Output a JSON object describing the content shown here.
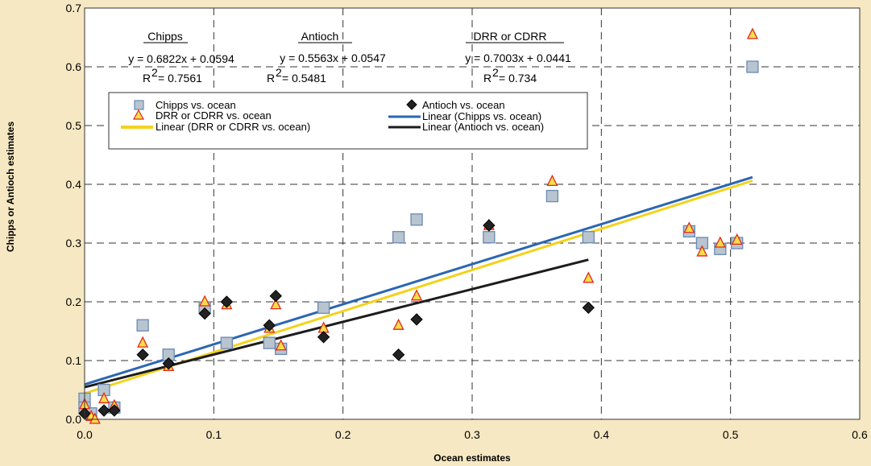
{
  "chart_data": {
    "type": "scatter",
    "xlabel": "Ocean estimates",
    "ylabel": "Chipps or Antioch estimates",
    "xlim": [
      0.0,
      0.6
    ],
    "ylim": [
      0.0,
      0.7
    ],
    "x_ticks": [
      "0.0",
      "0.1",
      "0.2",
      "0.3",
      "0.4",
      "0.5",
      "0.6"
    ],
    "y_ticks": [
      "0.0",
      "0.1",
      "0.2",
      "0.3",
      "0.4",
      "0.5",
      "0.6",
      "0.7"
    ],
    "grid": "dashed",
    "background_color": "#f6e8c2",
    "series": [
      {
        "name": "Chipps vs. ocean",
        "marker": "square",
        "color": "#b8c4cf",
        "stroke": "#6a8ab4",
        "points": [
          [
            0.0,
            0.035
          ],
          [
            0.0,
            0.02
          ],
          [
            0.005,
            0.01
          ],
          [
            0.015,
            0.05
          ],
          [
            0.023,
            0.02
          ],
          [
            0.045,
            0.16
          ],
          [
            0.065,
            0.11
          ],
          [
            0.093,
            0.19
          ],
          [
            0.11,
            0.13
          ],
          [
            0.143,
            0.13
          ],
          [
            0.152,
            0.12
          ],
          [
            0.185,
            0.19
          ],
          [
            0.243,
            0.31
          ],
          [
            0.257,
            0.34
          ],
          [
            0.313,
            0.31
          ],
          [
            0.362,
            0.38
          ],
          [
            0.39,
            0.31
          ],
          [
            0.468,
            0.32
          ],
          [
            0.478,
            0.3
          ],
          [
            0.492,
            0.29
          ],
          [
            0.505,
            0.3
          ],
          [
            0.517,
            0.6
          ]
        ]
      },
      {
        "name": "DRR or CDRR vs. ocean",
        "marker": "triangle",
        "color": "#f7dd4a",
        "stroke": "#e0281c",
        "points": [
          [
            0.0,
            0.025
          ],
          [
            0.005,
            0.005
          ],
          [
            0.008,
            0.0
          ],
          [
            0.015,
            0.035
          ],
          [
            0.023,
            0.023
          ],
          [
            0.045,
            0.13
          ],
          [
            0.065,
            0.09
          ],
          [
            0.093,
            0.2
          ],
          [
            0.11,
            0.195
          ],
          [
            0.143,
            0.155
          ],
          [
            0.148,
            0.195
          ],
          [
            0.152,
            0.125
          ],
          [
            0.185,
            0.155
          ],
          [
            0.243,
            0.16
          ],
          [
            0.257,
            0.21
          ],
          [
            0.313,
            0.33
          ],
          [
            0.362,
            0.405
          ],
          [
            0.39,
            0.24
          ],
          [
            0.468,
            0.325
          ],
          [
            0.478,
            0.285
          ],
          [
            0.492,
            0.3
          ],
          [
            0.505,
            0.305
          ],
          [
            0.517,
            0.655
          ]
        ]
      },
      {
        "name": "Antioch vs. ocean",
        "marker": "diamond",
        "color": "#222222",
        "stroke": "#000000",
        "points": [
          [
            0.0,
            0.01
          ],
          [
            0.015,
            0.015
          ],
          [
            0.023,
            0.015
          ],
          [
            0.045,
            0.11
          ],
          [
            0.065,
            0.095
          ],
          [
            0.093,
            0.18
          ],
          [
            0.11,
            0.2
          ],
          [
            0.143,
            0.16
          ],
          [
            0.148,
            0.21
          ],
          [
            0.185,
            0.14
          ],
          [
            0.243,
            0.11
          ],
          [
            0.257,
            0.17
          ],
          [
            0.313,
            0.33
          ],
          [
            0.39,
            0.19
          ]
        ]
      }
    ],
    "trendlines": [
      {
        "name": "Linear (Chipps vs. ocean)",
        "slope": 0.6822,
        "intercept": 0.0594,
        "x_range": [
          0.0,
          0.517
        ],
        "color": "#2b66b3"
      },
      {
        "name": "Linear (DRR or CDRR vs. ocean)",
        "slope": 0.7003,
        "intercept": 0.0441,
        "x_range": [
          0.0,
          0.517
        ],
        "color": "#f4d21c"
      },
      {
        "name": "Linear (Antioch vs. ocean)",
        "slope": 0.5563,
        "intercept": 0.0547,
        "x_range": [
          0.0,
          0.39
        ],
        "color": "#1c1c1c"
      }
    ],
    "annotations": [
      {
        "title": "Chipps",
        "equation": "y = 0.6822x + 0.0594",
        "r2": "= 0.7561"
      },
      {
        "title": "Antioch",
        "equation": "y = 0.5563x + 0.0547",
        "r2": "= 0.5481"
      },
      {
        "title": "DRR or CDRR",
        "equation": "y = 0.7003x + 0.0441",
        "r2": "= 0.734"
      }
    ],
    "r2_label": "R",
    "r2_sup": "2",
    "legend_position": "top",
    "legend": [
      "Chipps vs. ocean",
      "Antioch vs. ocean",
      "DRR or CDRR vs. ocean",
      "Linear (Chipps vs. ocean)",
      "Linear (DRR or CDRR vs. ocean)",
      "Linear (Antioch vs. ocean)"
    ]
  }
}
